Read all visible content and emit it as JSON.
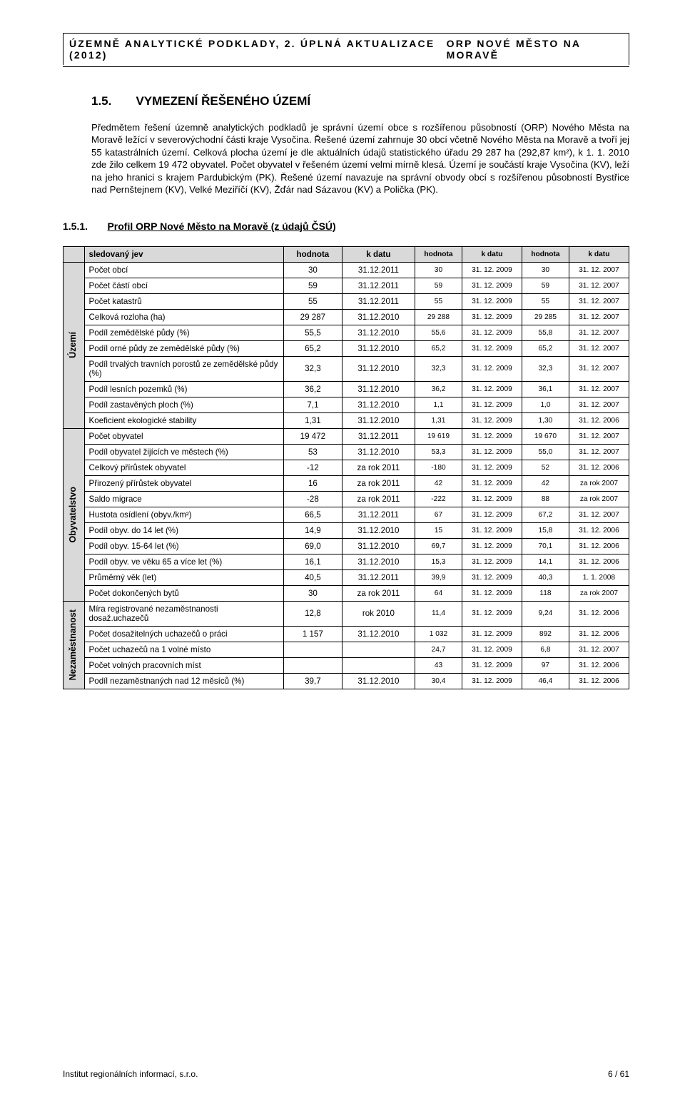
{
  "header": {
    "left": "ÚZEMNĚ ANALYTICKÉ PODKLADY, 2. ÚPLNÁ AKTUALIZACE (2012)",
    "right": "ORP NOVÉ MĚSTO NA MORAVĚ"
  },
  "section": {
    "num": "1.5.",
    "title": "VYMEZENÍ ŘEŠENÉHO ÚZEMÍ",
    "para": "Předmětem řešení územně analytických podkladů je správní území obce s rozšířenou působností (ORP) Nového Města na Moravě ležící v severovýchodní části kraje Vysočina. Řešené území zahrnuje 30 obcí včetně Nového Města na Moravě a tvoří jej 55 katastrálních území. Celková plocha území je dle aktuálních údajů statistického úřadu 29 287 ha (292,87 km²), k 1. 1. 2010 zde žilo celkem 19 472 obyvatel. Počet obyvatel v řešeném území velmi mírně klesá. Území je součástí kraje Vysočina (KV), leží na jeho hranici s krajem Pardubickým (PK). Řešené území navazuje na správní obvody obcí s rozšířenou působností Bystřice nad Pernštejnem (KV), Velké Meziříčí (KV), Žďár nad Sázavou (KV) a Polička (PK)."
  },
  "subsection": {
    "num": "1.5.1.",
    "title": "Profil ORP Nové Město na Moravě (z údajů ČSÚ)"
  },
  "table": {
    "head": [
      "sledovaný jev",
      "hodnota",
      "k datu",
      "hodnota",
      "k datu",
      "hodnota",
      "k datu"
    ],
    "groups": [
      {
        "label": "Území",
        "rows": [
          [
            "Počet obcí",
            "30",
            "31.12.2011",
            "30",
            "31. 12. 2009",
            "30",
            "31. 12. 2007"
          ],
          [
            "Počet částí obcí",
            "59",
            "31.12.2011",
            "59",
            "31. 12. 2009",
            "59",
            "31. 12. 2007"
          ],
          [
            "Počet katastrů",
            "55",
            "31.12.2011",
            "55",
            "31. 12. 2009",
            "55",
            "31. 12. 2007"
          ],
          [
            "Celková rozloha (ha)",
            "29 287",
            "31.12.2010",
            "29 288",
            "31. 12. 2009",
            "29 285",
            "31. 12. 2007"
          ],
          [
            "Podíl zemědělské půdy (%)",
            "55,5",
            "31.12.2010",
            "55,6",
            "31. 12. 2009",
            "55,8",
            "31. 12. 2007"
          ],
          [
            "Podíl orné půdy ze zemědělské půdy (%)",
            "65,2",
            "31.12.2010",
            "65,2",
            "31. 12. 2009",
            "65,2",
            "31. 12. 2007"
          ],
          [
            "Podíl trvalých travních porostů ze zemědělské půdy (%)",
            "32,3",
            "31.12.2010",
            "32,3",
            "31. 12. 2009",
            "32,3",
            "31. 12. 2007"
          ],
          [
            "Podíl lesních pozemků (%)",
            "36,2",
            "31.12.2010",
            "36,2",
            "31. 12. 2009",
            "36,1",
            "31. 12. 2007"
          ],
          [
            "Podíl zastavěných ploch (%)",
            "7,1",
            "31.12.2010",
            "1,1",
            "31. 12. 2009",
            "1,0",
            "31. 12. 2007"
          ],
          [
            "Koeficient ekologické stability",
            "1,31",
            "31.12.2010",
            "1,31",
            "31. 12. 2009",
            "1,30",
            "31. 12. 2006"
          ]
        ]
      },
      {
        "label": "Obyvatelstvo",
        "rows": [
          [
            "Počet obyvatel",
            "19 472",
            "31.12.2011",
            "19 619",
            "31. 12. 2009",
            "19 670",
            "31. 12. 2007"
          ],
          [
            "Podíl obyvatel žijících ve městech (%)",
            "53",
            "31.12.2010",
            "53,3",
            "31. 12. 2009",
            "55,0",
            "31. 12. 2007"
          ],
          [
            "Celkový přírůstek obyvatel",
            "-12",
            "za rok 2011",
            "-180",
            "31. 12. 2009",
            "52",
            "31. 12. 2006"
          ],
          [
            "Přirozený přírůstek obyvatel",
            "16",
            "za rok 2011",
            "42",
            "31. 12. 2009",
            "42",
            "za rok 2007"
          ],
          [
            "Saldo migrace",
            "-28",
            "za rok 2011",
            "-222",
            "31. 12. 2009",
            "88",
            "za rok 2007"
          ],
          [
            "Hustota osídlení (obyv./km²)",
            "66,5",
            "31.12.2011",
            "67",
            "31. 12. 2009",
            "67,2",
            "31. 12. 2007"
          ],
          [
            "Podíl obyv. do 14 let (%)",
            "14,9",
            "31.12.2010",
            "15",
            "31. 12. 2009",
            "15,8",
            "31. 12. 2006"
          ],
          [
            "Podíl obyv. 15-64 let (%)",
            "69,0",
            "31.12.2010",
            "69,7",
            "31. 12. 2009",
            "70,1",
            "31. 12. 2006"
          ],
          [
            "Podíl obyv. ve věku 65 a více let (%)",
            "16,1",
            "31.12.2010",
            "15,3",
            "31. 12. 2009",
            "14,1",
            "31. 12. 2006"
          ],
          [
            "Průměrný věk (let)",
            "40,5",
            "31.12.2011",
            "39,9",
            "31. 12. 2009",
            "40,3",
            "1. 1. 2008"
          ],
          [
            "Počet dokončených bytů",
            "30",
            "za rok 2011",
            "64",
            "31. 12. 2009",
            "118",
            "za rok 2007"
          ]
        ]
      },
      {
        "label": "Nezaměstnanost",
        "rows": [
          [
            "Míra registrované nezaměstnanosti dosaž.uchazečů",
            "12,8",
            "rok 2010",
            "11,4",
            "31. 12. 2009",
            "9,24",
            "31. 12. 2006"
          ],
          [
            "Počet dosažitelných uchazečů o práci",
            "1 157",
            "31.12.2010",
            "1 032",
            "31. 12. 2009",
            "892",
            "31. 12. 2006"
          ],
          [
            "Počet uchazečů na 1 volné místo",
            "",
            "",
            "24,7",
            "31. 12. 2009",
            "6,8",
            "31. 12. 2007"
          ],
          [
            "Počet volných pracovních míst",
            "",
            "",
            "43",
            "31. 12. 2009",
            "97",
            "31. 12. 2006"
          ],
          [
            "Podíl nezaměstnaných nad 12 měsíců (%)",
            "39,7",
            "31.12.2010",
            "30,4",
            "31. 12. 2009",
            "46,4",
            "31. 12. 2006"
          ]
        ]
      }
    ]
  },
  "footer": {
    "left": "Institut regionálních informací, s.r.o.",
    "right": "6 / 61"
  }
}
